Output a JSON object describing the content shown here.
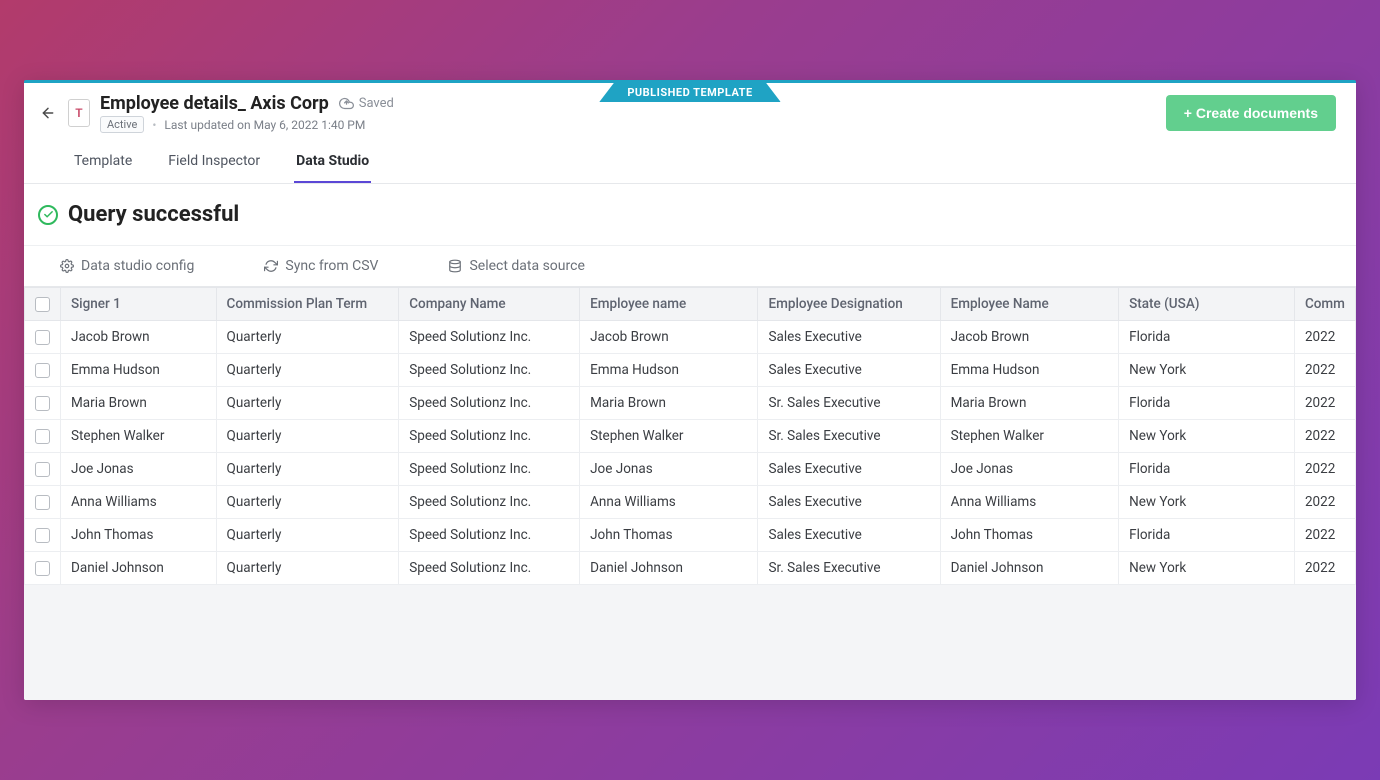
{
  "ribbon": {
    "label": "PUBLISHED TEMPLATE"
  },
  "header": {
    "doc_icon_letter": "T",
    "title": "Employee details_ Axis Corp",
    "saved_label": "Saved",
    "badge": "Active",
    "last_updated": "Last updated on May 6, 2022 1:40 PM",
    "create_button": "+ Create documents"
  },
  "tabs": [
    {
      "label": "Template",
      "active": false
    },
    {
      "label": "Field Inspector",
      "active": false
    },
    {
      "label": "Data Studio",
      "active": true
    }
  ],
  "query": {
    "title": "Query successful"
  },
  "toolbar": {
    "config": "Data studio config",
    "sync": "Sync from CSV",
    "source": "Select data source"
  },
  "table": {
    "columns": [
      "Signer 1",
      "Commission Plan Term",
      "Company Name",
      "Employee name",
      "Employee Designation",
      "Employee Name",
      "State (USA)",
      "Comm"
    ],
    "rows": [
      [
        "Jacob Brown",
        "Quarterly",
        "Speed Solutionz Inc.",
        "Jacob Brown",
        "Sales Executive",
        "Jacob Brown",
        "Florida",
        "2022"
      ],
      [
        "Emma Hudson",
        "Quarterly",
        "Speed Solutionz Inc.",
        "Emma Hudson",
        "Sales Executive",
        "Emma Hudson",
        "New York",
        "2022"
      ],
      [
        "Maria Brown",
        "Quarterly",
        "Speed Solutionz Inc.",
        "Maria Brown",
        "Sr. Sales Executive",
        "Maria Brown",
        "Florida",
        "2022"
      ],
      [
        "Stephen Walker",
        "Quarterly",
        "Speed Solutionz Inc.",
        "Stephen Walker",
        "Sr. Sales Executive",
        "Stephen Walker",
        "New York",
        "2022"
      ],
      [
        "Joe Jonas",
        "Quarterly",
        "Speed Solutionz Inc.",
        "Joe Jonas",
        "Sales Executive",
        "Joe Jonas",
        "Florida",
        "2022"
      ],
      [
        "Anna Williams",
        "Quarterly",
        "Speed Solutionz Inc.",
        "Anna Williams",
        "Sales Executive",
        "Anna Williams",
        "New York",
        "2022"
      ],
      [
        "John Thomas",
        "Quarterly",
        "Speed Solutionz Inc.",
        "John Thomas",
        "Sales Executive",
        "John Thomas",
        "Florida",
        "2022"
      ],
      [
        "Daniel Johnson",
        "Quarterly",
        "Speed Solutionz Inc.",
        "Daniel Johnson",
        "Sr. Sales Executive",
        "Daniel Johnson",
        "New York",
        "2022"
      ]
    ]
  },
  "colors": {
    "accent_teal": "#1fa3c4",
    "accent_green": "#62cf8e",
    "success": "#2fb95d",
    "tab_underline": "#5b47d6",
    "text_primary": "#222222",
    "text_muted": "#6b7078",
    "border": "#e6e8eb",
    "header_bg": "#f3f4f6"
  }
}
